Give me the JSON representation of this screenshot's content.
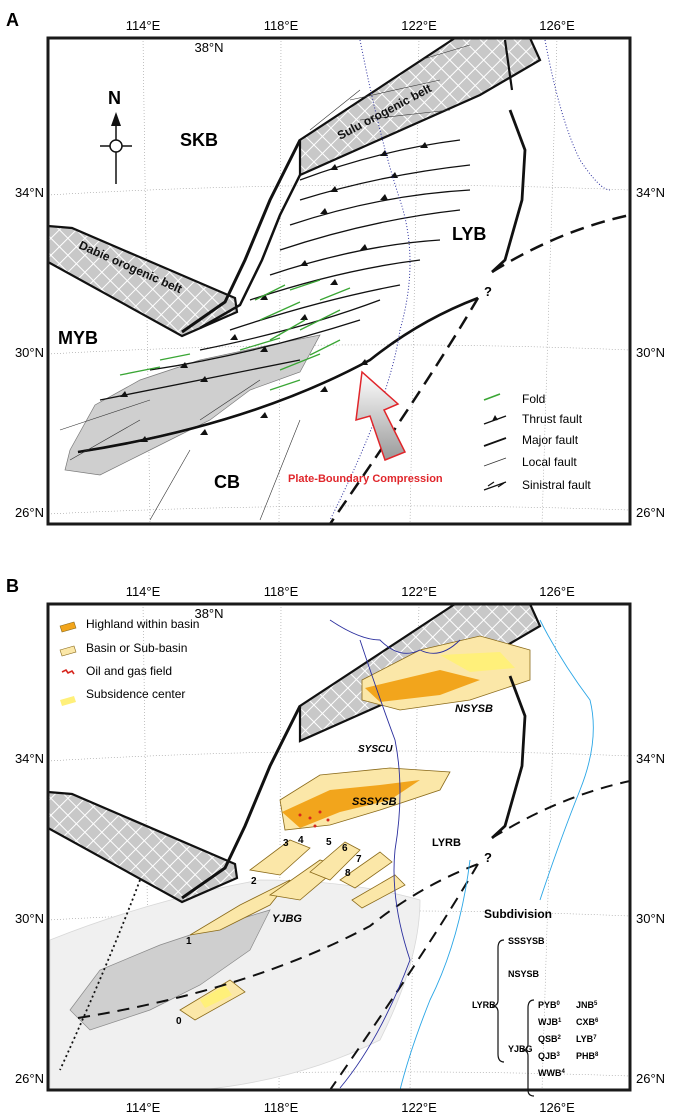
{
  "panel_a": {
    "label": "A",
    "lon_ticks": [
      "114°E",
      "118°E",
      "122°E",
      "126°E"
    ],
    "lat_ticks_left": [
      "34°N",
      "30°N",
      "26°N"
    ],
    "lat_ticks_right": [
      "34°N",
      "30°N",
      "26°N"
    ],
    "top_lat": "38°N",
    "north_label": "N",
    "regions": {
      "skb": "SKB",
      "myb": "MYB",
      "lyb": "LYB",
      "cb": "CB"
    },
    "belts": {
      "sulu": "Sulu orogenic belt",
      "dabie": "Dabie orogenic belt"
    },
    "question_mark": "?",
    "arrow_label": "Plate-Boundary Compression",
    "legend": [
      "Fold",
      "Thrust fault",
      "Major fault",
      "Local fault",
      "Sinistral fault"
    ]
  },
  "panel_b": {
    "label": "B",
    "lon_ticks": [
      "114°E",
      "118°E",
      "122°E",
      "126°E"
    ],
    "lat_ticks_left": [
      "34°N",
      "30°N",
      "26°N"
    ],
    "lat_ticks_right": [
      "34°N",
      "30°N",
      "26°N"
    ],
    "top_lat": "38°N",
    "legend": [
      "Highland within basin",
      "Basin or Sub-basin",
      "Oil and gas field",
      "Subsidence center"
    ],
    "basins": {
      "nsysb": "NSYSB",
      "syscu": "SYSCU",
      "sssysb": "SSSYSB",
      "lyrb": "LYRB",
      "yjbg": "YJBG"
    },
    "question_mark": "?",
    "numbers": [
      "0",
      "1",
      "2",
      "3",
      "4",
      "5",
      "6",
      "7",
      "8"
    ],
    "subdivision": {
      "title": "Subdivision",
      "root": "LYRB",
      "level1": [
        "SSSYSB",
        "NSYSB",
        "YJBG"
      ],
      "yjbg_children": [
        {
          "name": "PYB",
          "idx": "0"
        },
        {
          "name": "WJB",
          "idx": "1"
        },
        {
          "name": "QSB",
          "idx": "2"
        },
        {
          "name": "QJB",
          "idx": "3"
        },
        {
          "name": "WWB",
          "idx": "4"
        },
        {
          "name": "JNB",
          "idx": "5"
        },
        {
          "name": "CXB",
          "idx": "6"
        },
        {
          "name": "LYB",
          "idx": "7"
        },
        {
          "name": "PHB",
          "idx": "8"
        }
      ]
    }
  },
  "colors": {
    "frame": "#1a1a1a",
    "fold_green": "#3aa635",
    "compression_red": "#e0262b",
    "highland_orange": "#f2a51c",
    "basin_cream": "#fbe7a8",
    "subsidence_yellow": "#fff07a",
    "oil_red": "#d7261e",
    "coast_blue": "#2b2f9e",
    "coast_lightblue": "#2aa6e6",
    "grey_fill": "#cfcfcf"
  }
}
